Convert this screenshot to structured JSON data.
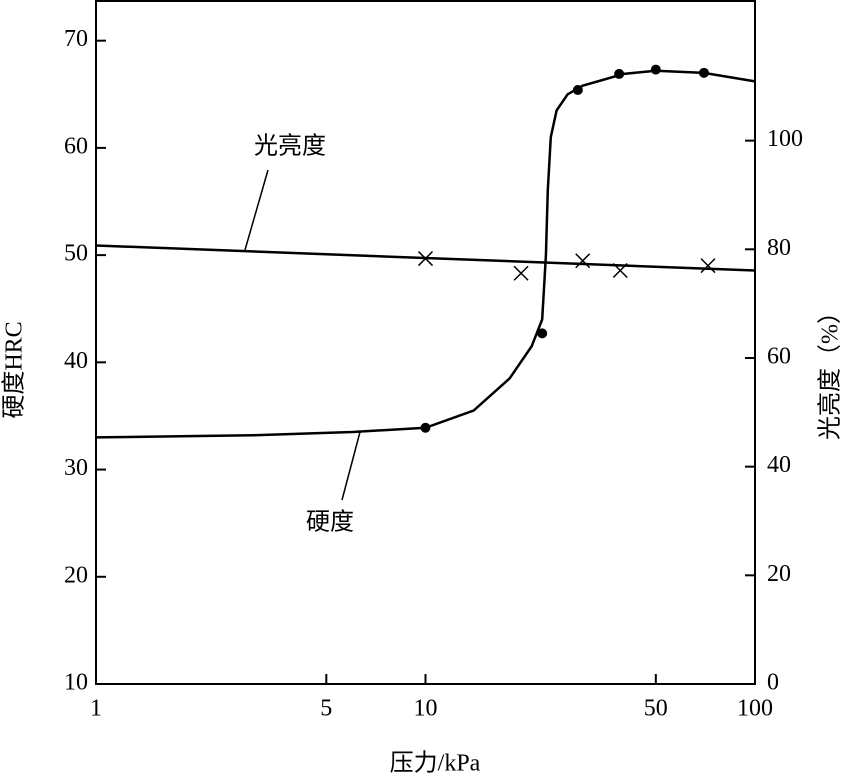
{
  "chart_data": {
    "type": "line",
    "x_label": "压力/kPa",
    "y_label": "硬度HRC",
    "y2_label": "光亮度（%）",
    "x_scale": "log",
    "xlim": [
      1,
      100
    ],
    "xticks": [
      1,
      5,
      10,
      50,
      100
    ],
    "ylim": [
      10,
      73.7
    ],
    "yticks": [
      10,
      20,
      30,
      40,
      50,
      60,
      70
    ],
    "y2lim": [
      0,
      125.7
    ],
    "y2ticks": [
      0,
      20,
      40,
      60,
      80,
      100
    ],
    "series": [
      {
        "name": "硬度",
        "axis": "y",
        "color": "#000000",
        "x": [
          1,
          3,
          6,
          10,
          14,
          18,
          21,
          22.6,
          23.2,
          23.5,
          24,
          25,
          27,
          30,
          40,
          50,
          70,
          100
        ],
        "values": [
          33,
          33.2,
          33.5,
          33.9,
          35.5,
          38.5,
          41.5,
          44,
          50,
          56,
          61,
          63.5,
          65,
          65.8,
          66.9,
          67.2,
          67,
          66.2
        ],
        "marker": "dot",
        "marker_x": [
          10,
          22.6,
          29,
          38.7,
          50,
          70
        ],
        "marker_values": [
          33.9,
          42.7,
          65.4,
          66.9,
          67.3,
          67
        ]
      },
      {
        "name": "光亮度",
        "axis": "y2",
        "color": "#000000",
        "x": [
          1,
          100
        ],
        "values": [
          80.7,
          76.1
        ],
        "marker": "cross",
        "marker_x": [
          10,
          19.5,
          30,
          39,
          72
        ],
        "marker_values": [
          78.3,
          75.6,
          77.9,
          76.1,
          77
        ]
      }
    ]
  }
}
